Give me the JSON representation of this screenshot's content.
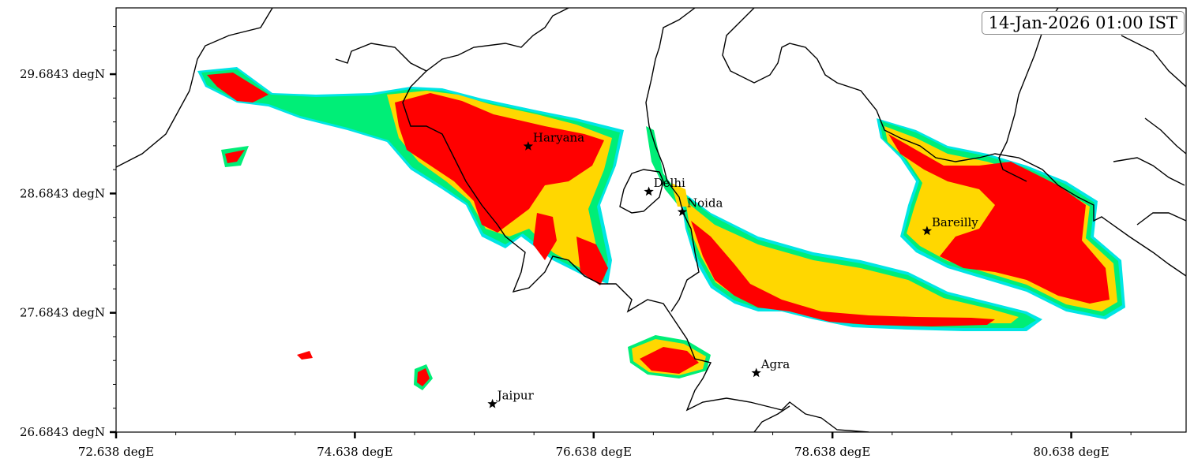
{
  "timestamp": "14-Jan-2026 01:00 IST",
  "axes": {
    "x_ticks": [
      {
        "value": 72.638,
        "label": "72.638 degE"
      },
      {
        "value": 74.638,
        "label": "74.638 degE"
      },
      {
        "value": 76.638,
        "label": "76.638 degE"
      },
      {
        "value": 78.638,
        "label": "78.638 degE"
      },
      {
        "value": 80.638,
        "label": "80.638 degE"
      }
    ],
    "y_ticks": [
      {
        "value": 29.6843,
        "label": "29.6843 degN"
      },
      {
        "value": 28.6843,
        "label": "28.6843 degN"
      },
      {
        "value": 27.6843,
        "label": "27.6843 degN"
      },
      {
        "value": 26.6843,
        "label": "26.6843 degN"
      }
    ],
    "xlim": [
      72.638,
      81.6
    ],
    "ylim": [
      26.6843,
      30.24
    ]
  },
  "cities": [
    {
      "name": "Haryana",
      "lon": 76.09,
      "lat": 29.08
    },
    {
      "name": "Delhi",
      "lon": 77.1,
      "lat": 28.7
    },
    {
      "name": "Noida",
      "lon": 77.38,
      "lat": 28.53
    },
    {
      "name": "Bareilly",
      "lon": 79.43,
      "lat": 28.37
    },
    {
      "name": "Agra",
      "lon": 78.0,
      "lat": 27.18
    },
    {
      "name": "Jaipur",
      "lon": 75.79,
      "lat": 26.92
    }
  ],
  "colors": {
    "level_1": "#00e5e5",
    "level_2": "#00ee77",
    "level_3": "#ffd700",
    "level_4": "#ff0000",
    "boundary": "#000000"
  }
}
